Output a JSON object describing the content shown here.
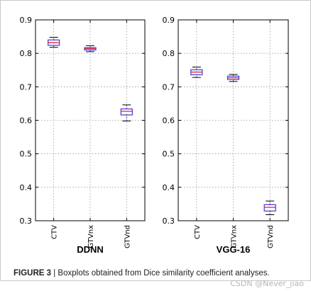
{
  "chart_data": [
    {
      "type": "box",
      "title": "",
      "xlabel": "DDNN",
      "ylabel": "",
      "ylim": [
        0.3,
        0.9
      ],
      "yticks": [
        "0.3",
        "0.4",
        "0.5",
        "0.6",
        "0.7",
        "0.8",
        "0.9"
      ],
      "grid": true,
      "categories": [
        "CTV",
        "GTVnx",
        "GTVnd"
      ],
      "boxes": [
        {
          "whisker_low": 0.818,
          "q1": 0.824,
          "median": 0.832,
          "q3": 0.84,
          "whisker_high": 0.848
        },
        {
          "whisker_low": 0.805,
          "q1": 0.81,
          "median": 0.814,
          "q3": 0.817,
          "whisker_high": 0.823
        },
        {
          "whisker_low": 0.598,
          "q1": 0.616,
          "median": 0.627,
          "q3": 0.634,
          "whisker_high": 0.646
        }
      ]
    },
    {
      "type": "box",
      "title": "",
      "xlabel": "VGG-16",
      "ylabel": "",
      "ylim": [
        0.3,
        0.9
      ],
      "yticks": [
        "0.3",
        "0.4",
        "0.5",
        "0.6",
        "0.7",
        "0.8",
        "0.9"
      ],
      "grid": true,
      "categories": [
        "CTV",
        "GTVnx",
        "GTVnd"
      ],
      "boxes": [
        {
          "whisker_low": 0.728,
          "q1": 0.736,
          "median": 0.744,
          "q3": 0.751,
          "whisker_high": 0.759
        },
        {
          "whisker_low": 0.716,
          "q1": 0.722,
          "median": 0.727,
          "q3": 0.732,
          "whisker_high": 0.737
        },
        {
          "whisker_low": 0.318,
          "q1": 0.329,
          "median": 0.34,
          "q3": 0.348,
          "whisker_high": 0.359
        }
      ]
    }
  ],
  "style": {
    "box_color": "#3a3ad6",
    "median_color": "#e8202a",
    "axis_color": "#000000",
    "grid_color": "#9a9a9a"
  },
  "caption": {
    "label": "FIGURE 3",
    "text": " | Boxplots obtained from Dice similarity coefficient analyses."
  },
  "watermark": "CSDN @Never_jiao"
}
